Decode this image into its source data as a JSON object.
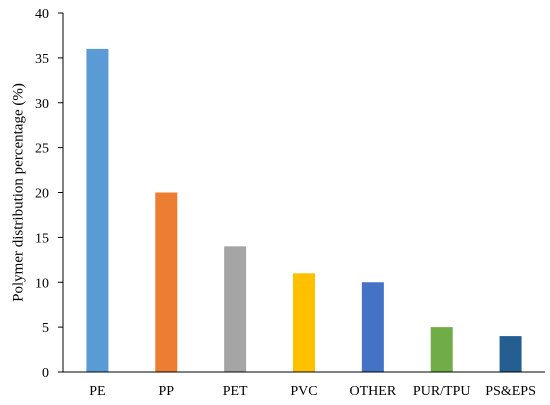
{
  "chart_data": {
    "type": "bar",
    "title": "",
    "xlabel": "",
    "ylabel": "Polymer distribution percentage (%)",
    "ylim": [
      0,
      40
    ],
    "yticks": [
      0,
      5,
      10,
      15,
      20,
      25,
      30,
      35,
      40
    ],
    "grid": false,
    "legend": "none",
    "categories": [
      "PE",
      "PP",
      "PET",
      "PVC",
      "OTHER",
      "PUR/TPU",
      "PS&EPS"
    ],
    "values": [
      36,
      20,
      14,
      11,
      10,
      5,
      4
    ],
    "colors": [
      "#5B9BD5",
      "#ED7D31",
      "#A5A5A5",
      "#FFC000",
      "#4472C4",
      "#70AD47",
      "#255E91"
    ]
  }
}
